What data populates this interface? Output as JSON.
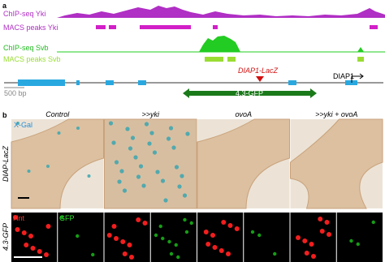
{
  "panel_a": {
    "label": "a",
    "tracks": [
      "ChIP-seq Yki",
      "MACS peaks Yki",
      "ChIP-seq Svb",
      "MACS peaks Svb"
    ],
    "scale_bar": "500 bp",
    "reporter": "DIAP1-LacZ",
    "gene": "DIAP1",
    "enhancer": "4.3-GFP"
  },
  "panel_b": {
    "label": "b",
    "columns": [
      "Control",
      ">>yki",
      "ovoA",
      ">>yki + ovoA"
    ],
    "rows": [
      "DIAP-LacZ",
      "4.3-GFP"
    ],
    "stain": "X-Gal",
    "channels": [
      "Hnt",
      "GFP"
    ]
  }
}
